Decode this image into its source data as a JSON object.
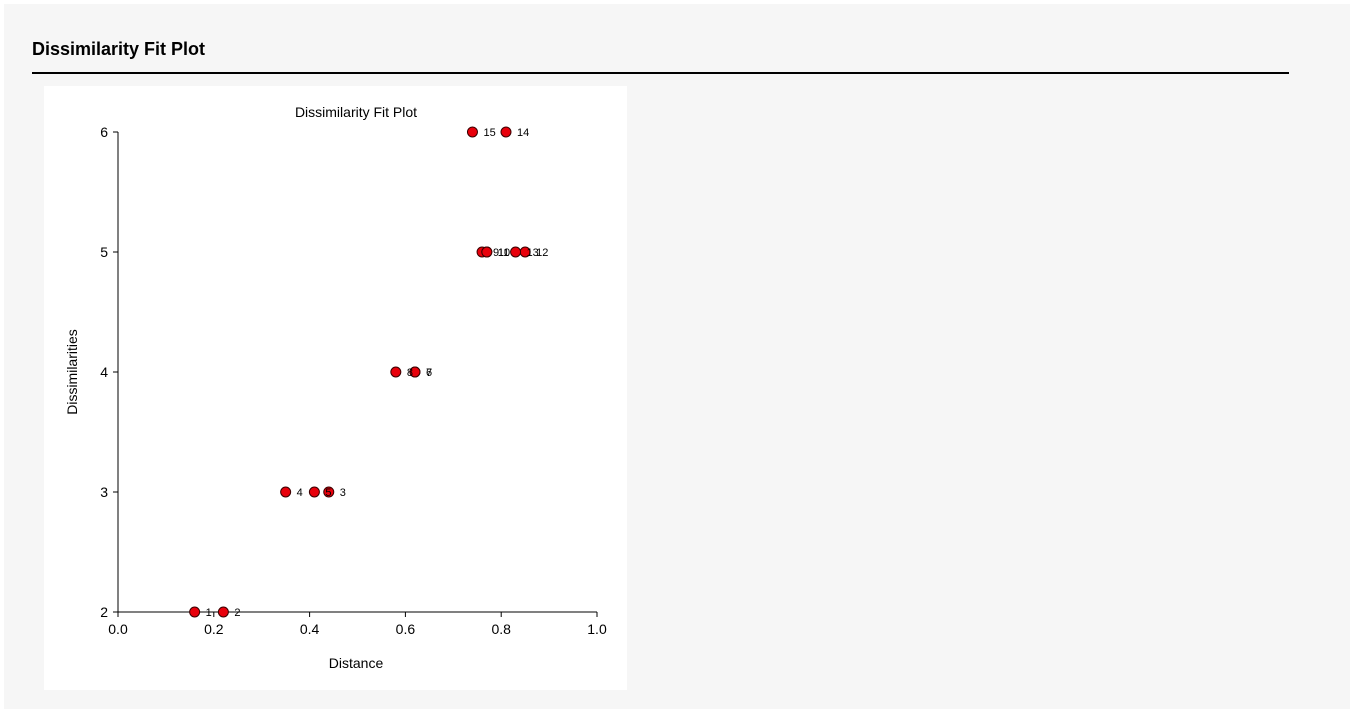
{
  "report": {
    "section_title": "Dissimilarity Fit Plot"
  },
  "colors": {
    "marker_fill": "#e8000b",
    "marker_stroke": "#3a0000",
    "axis": "#000000",
    "page_background": "#f6f6f6",
    "panel_background": "#ffffff"
  },
  "chart_data": {
    "type": "scatter",
    "title": "Dissimilarity Fit Plot",
    "xlabel": "Distance",
    "ylabel": "Dissimilarities",
    "xlim": [
      0.0,
      1.0
    ],
    "ylim": [
      2,
      6
    ],
    "xticks": [
      "0.0",
      "0.2",
      "0.4",
      "0.6",
      "0.8",
      "1.0"
    ],
    "yticks": [
      "2",
      "3",
      "4",
      "5",
      "6"
    ],
    "grid": false,
    "legend": "none",
    "points": [
      {
        "label": "1",
        "x": 0.16,
        "y": 2
      },
      {
        "label": "2",
        "x": 0.22,
        "y": 2
      },
      {
        "label": "3",
        "x": 0.44,
        "y": 3
      },
      {
        "label": "4",
        "x": 0.35,
        "y": 3
      },
      {
        "label": "5",
        "x": 0.41,
        "y": 3
      },
      {
        "label": "6",
        "x": 0.62,
        "y": 4
      },
      {
        "label": "7",
        "x": 0.62,
        "y": 4
      },
      {
        "label": "8",
        "x": 0.58,
        "y": 4
      },
      {
        "label": "9",
        "x": 0.76,
        "y": 5
      },
      {
        "label": "10",
        "x": 0.77,
        "y": 5
      },
      {
        "label": "11",
        "x": 0.77,
        "y": 5
      },
      {
        "label": "12",
        "x": 0.85,
        "y": 5
      },
      {
        "label": "13",
        "x": 0.83,
        "y": 5
      },
      {
        "label": "14",
        "x": 0.81,
        "y": 6
      },
      {
        "label": "15",
        "x": 0.74,
        "y": 6
      }
    ]
  }
}
